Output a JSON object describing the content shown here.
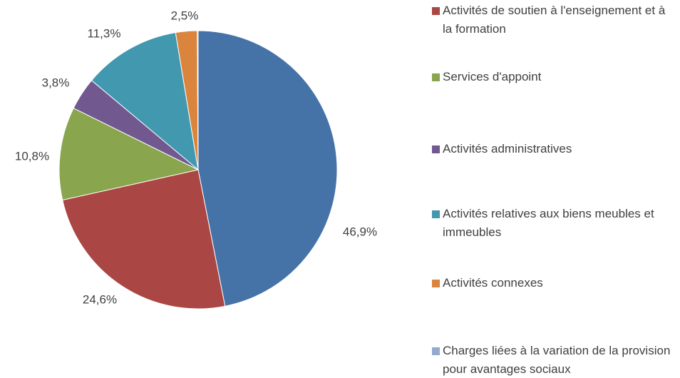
{
  "chart_data": {
    "type": "pie",
    "categories": [
      null,
      "Activités de soutien à l'enseignement et à la formation",
      "Services d'appoint",
      "Activités administratives",
      "Activités relatives aux biens meubles et immeubles",
      "Activités connexes",
      "Charges liées à la variation de la provision pour avantages sociaux"
    ],
    "values": [
      46.9,
      24.6,
      10.8,
      3.8,
      11.3,
      2.5,
      0.1
    ],
    "value_labels": [
      "46,9%",
      "24,6%",
      "10,8%",
      "3,8%",
      "11,3%",
      "2,5%",
      null
    ],
    "colors": [
      "#4572a7",
      "#aa4643",
      "#89a54e",
      "#71588f",
      "#4198af",
      "#db843d",
      "#93a9cf"
    ],
    "legend": "right"
  }
}
